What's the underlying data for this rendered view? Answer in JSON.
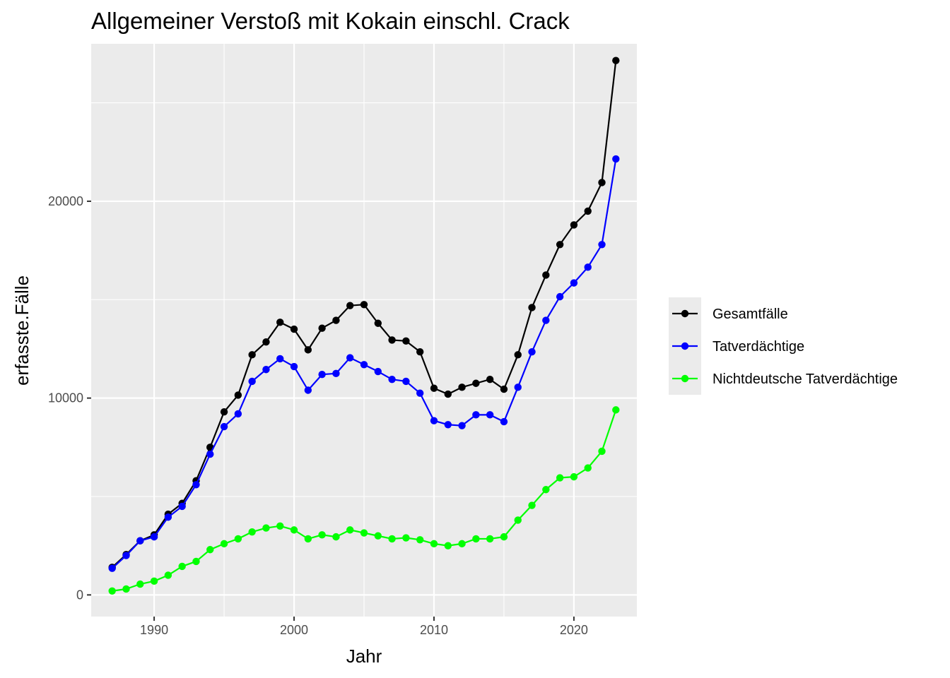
{
  "chart_data": {
    "type": "line",
    "title": "Allgemeiner Verstoß mit Kokain einschl. Crack",
    "xlabel": "Jahr",
    "ylabel": "erfasste.Fälle",
    "xlim": [
      1985.5,
      2024.5
    ],
    "ylim": [
      -1100,
      28000
    ],
    "x_ticks": [
      1990,
      2000,
      2010,
      2020
    ],
    "y_ticks": [
      0,
      10000,
      20000
    ],
    "grid": true,
    "legend_position": "right",
    "x": [
      1987,
      1988,
      1989,
      1990,
      1991,
      1992,
      1993,
      1994,
      1995,
      1996,
      1997,
      1998,
      1999,
      2000,
      2001,
      2002,
      2003,
      2004,
      2005,
      2006,
      2007,
      2008,
      2009,
      2010,
      2011,
      2012,
      2013,
      2014,
      2015,
      2016,
      2017,
      2018,
      2019,
      2020,
      2021,
      2022,
      2023
    ],
    "series": [
      {
        "name": "Gesamtfälle",
        "color": "#000000",
        "values": [
          1400,
          2050,
          2750,
          3050,
          4100,
          4650,
          5800,
          7500,
          9300,
          10150,
          12200,
          12850,
          13850,
          13500,
          12450,
          13550,
          13950,
          14700,
          14750,
          13800,
          12950,
          12900,
          12350,
          10500,
          10200,
          10550,
          10750,
          10950,
          10450,
          12200,
          14600,
          16250,
          17800,
          18800,
          19500,
          20950,
          27150
        ]
      },
      {
        "name": "Tatverdächtige",
        "color": "#0000ff",
        "values": [
          1350,
          2000,
          2750,
          2950,
          3950,
          4500,
          5600,
          7150,
          8550,
          9200,
          10850,
          11450,
          12000,
          11600,
          10400,
          11200,
          11250,
          12050,
          11700,
          11350,
          10950,
          10850,
          10250,
          8850,
          8650,
          8600,
          9150,
          9150,
          8800,
          10550,
          12350,
          13950,
          15150,
          15850,
          16650,
          17800,
          22150
        ]
      },
      {
        "name": "Nichtdeutsche Tatverdächtige",
        "color": "#00ff00",
        "values": [
          200,
          300,
          550,
          700,
          1000,
          1450,
          1700,
          2300,
          2600,
          2850,
          3200,
          3400,
          3500,
          3300,
          2850,
          3050,
          2950,
          3300,
          3150,
          3000,
          2850,
          2900,
          2800,
          2600,
          2500,
          2600,
          2850,
          2850,
          2950,
          3800,
          4550,
          5350,
          5950,
          6000,
          6450,
          7300,
          9400
        ]
      }
    ]
  }
}
